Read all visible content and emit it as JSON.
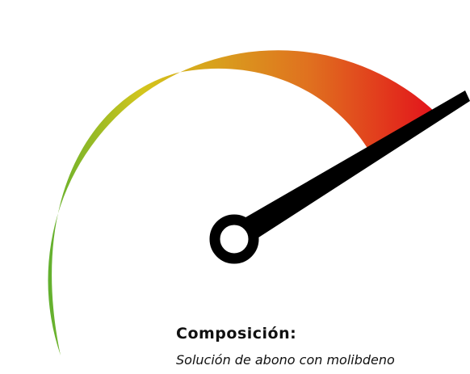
{
  "heading": "Composición:",
  "text": "Solución de abono con molibdeno"
}
